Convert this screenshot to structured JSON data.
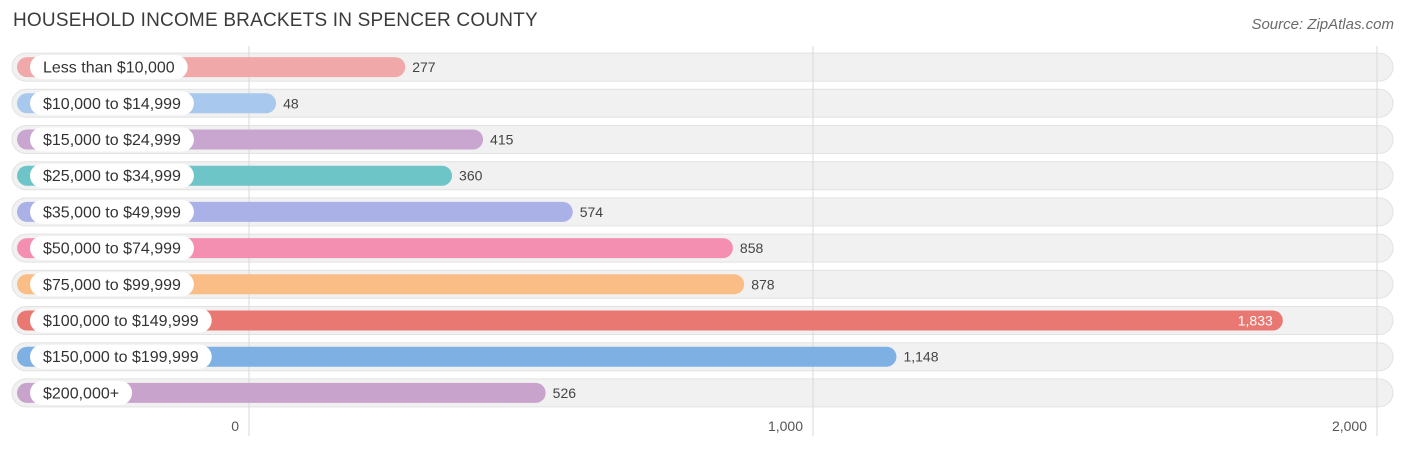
{
  "header": {
    "title": "HOUSEHOLD INCOME BRACKETS IN SPENCER COUNTY",
    "source": "Source: ZipAtlas.com"
  },
  "chart_data": {
    "type": "bar",
    "orientation": "horizontal",
    "title": "HOUSEHOLD INCOME BRACKETS IN SPENCER COUNTY",
    "xlabel": "",
    "ylabel": "",
    "xlim": [
      0,
      2000
    ],
    "grid": true,
    "categories": [
      "Less than $10,000",
      "$10,000 to $14,999",
      "$15,000 to $24,999",
      "$25,000 to $34,999",
      "$35,000 to $49,999",
      "$50,000 to $74,999",
      "$75,000 to $99,999",
      "$100,000 to $149,999",
      "$150,000 to $199,999",
      "$200,000+"
    ],
    "values": [
      277,
      48,
      415,
      360,
      574,
      858,
      878,
      1833,
      1148,
      526
    ],
    "value_labels": [
      "277",
      "48",
      "415",
      "360",
      "574",
      "858",
      "878",
      "1,833",
      "1,148",
      "526"
    ],
    "colors": [
      "#f0a8a8",
      "#a9c8ee",
      "#c9a6cf",
      "#6dc5c8",
      "#a9b1e6",
      "#f48fb1",
      "#fbbd86",
      "#e97872",
      "#7fb0e4",
      "#c8a3cc"
    ],
    "x_ticks": [
      0,
      1000,
      2000
    ],
    "x_tick_labels": [
      "0",
      "1,000",
      "2,000"
    ]
  }
}
